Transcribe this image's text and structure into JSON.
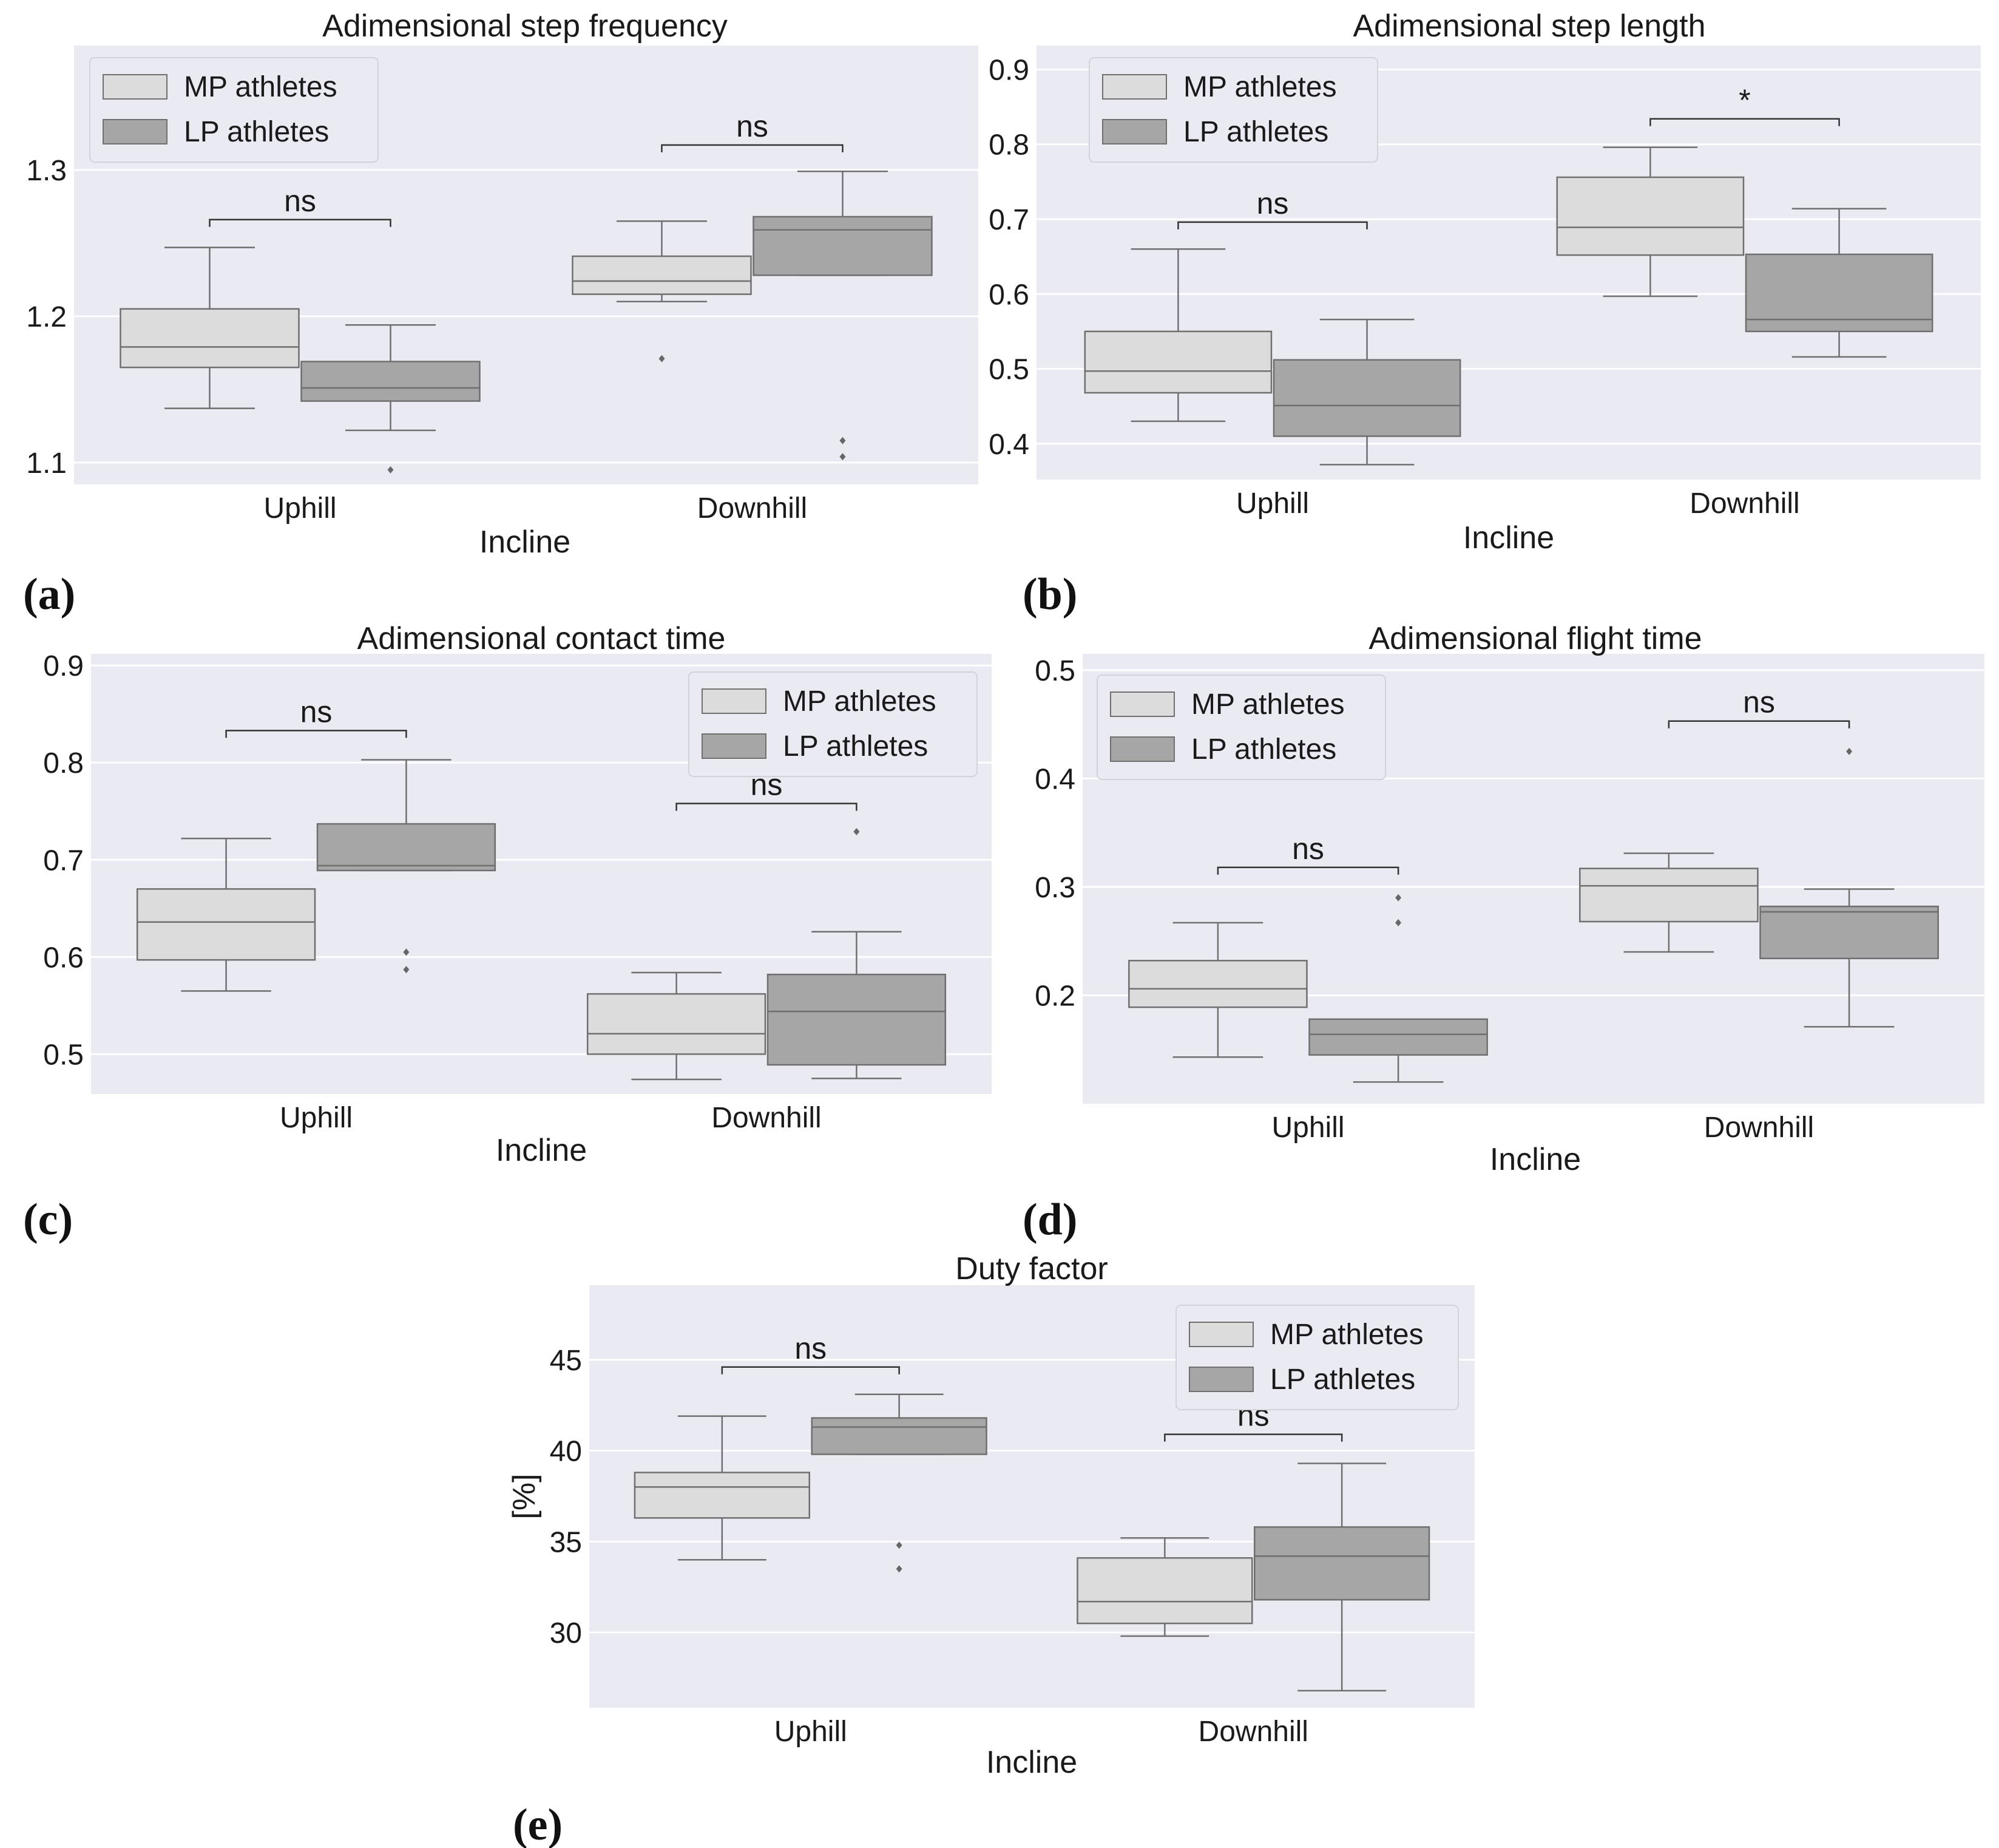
{
  "chart_data": [
    {
      "id": "a",
      "panel_label": "(a)",
      "type": "box",
      "title": "Adimensional step frequency",
      "xlabel": "Incline",
      "ylabel": "",
      "categories": [
        "Uphill",
        "Downhill"
      ],
      "ylim": [
        1.085,
        1.385
      ],
      "yticks": [
        1.1,
        1.2,
        1.3
      ],
      "ytick_labels": [
        "1.1",
        "1.2",
        "1.3"
      ],
      "legend": {
        "position": "top-left",
        "entries": [
          "MP athletes",
          "LP athletes"
        ]
      },
      "series": [
        {
          "name": "MP athletes",
          "color": "#dcdcdc",
          "boxes": [
            {
              "whislo": 1.137,
              "q1": 1.165,
              "med": 1.179,
              "q3": 1.205,
              "whishi": 1.247,
              "fliers": []
            },
            {
              "whislo": 1.21,
              "q1": 1.215,
              "med": 1.224,
              "q3": 1.241,
              "whishi": 1.265,
              "fliers": [
                1.171
              ]
            }
          ]
        },
        {
          "name": "LP athletes",
          "color": "#a6a6a6",
          "boxes": [
            {
              "whislo": 1.122,
              "q1": 1.142,
              "med": 1.151,
              "q3": 1.169,
              "whishi": 1.194,
              "fliers": [
                1.095
              ]
            },
            {
              "whislo": 1.228,
              "q1": 1.228,
              "med": 1.259,
              "q3": 1.268,
              "whishi": 1.299,
              "fliers": [
                1.104,
                1.115
              ]
            }
          ]
        }
      ],
      "annotations": [
        {
          "category": "Uphill",
          "text": "ns",
          "y": 1.266
        },
        {
          "category": "Downhill",
          "text": "ns",
          "y": 1.317
        }
      ]
    },
    {
      "id": "b",
      "panel_label": "(b)",
      "type": "box",
      "title": "Adimensional step length",
      "xlabel": "Incline",
      "ylabel": "",
      "categories": [
        "Uphill",
        "Downhill"
      ],
      "ylim": [
        0.352,
        0.932
      ],
      "yticks": [
        0.4,
        0.5,
        0.6,
        0.7,
        0.8,
        0.9
      ],
      "ytick_labels": [
        "0.4",
        "0.5",
        "0.6",
        "0.7",
        "0.8",
        "0.9"
      ],
      "legend": {
        "position": "top-left",
        "entries": [
          "MP athletes",
          "LP athletes"
        ]
      },
      "series": [
        {
          "name": "MP athletes",
          "color": "#dcdcdc",
          "boxes": [
            {
              "whislo": 0.43,
              "q1": 0.468,
              "med": 0.497,
              "q3": 0.55,
              "whishi": 0.66,
              "fliers": []
            },
            {
              "whislo": 0.597,
              "q1": 0.652,
              "med": 0.689,
              "q3": 0.756,
              "whishi": 0.796,
              "fliers": []
            }
          ]
        },
        {
          "name": "LP athletes",
          "color": "#a6a6a6",
          "boxes": [
            {
              "whislo": 0.372,
              "q1": 0.41,
              "med": 0.451,
              "q3": 0.512,
              "whishi": 0.566,
              "fliers": []
            },
            {
              "whislo": 0.516,
              "q1": 0.55,
              "med": 0.566,
              "q3": 0.653,
              "whishi": 0.714,
              "fliers": []
            }
          ]
        }
      ],
      "annotations": [
        {
          "category": "Uphill",
          "text": "ns",
          "y": 0.696
        },
        {
          "category": "Downhill",
          "text": "*",
          "y": 0.834
        }
      ]
    },
    {
      "id": "c",
      "panel_label": "(c)",
      "type": "box",
      "title": "Adimensional contact time",
      "xlabel": "Incline",
      "ylabel": "",
      "categories": [
        "Uphill",
        "Downhill"
      ],
      "ylim": [
        0.459,
        0.912
      ],
      "yticks": [
        0.5,
        0.6,
        0.7,
        0.8,
        0.9
      ],
      "ytick_labels": [
        "0.5",
        "0.6",
        "0.7",
        "0.8",
        "0.9"
      ],
      "legend": {
        "position": "top-right",
        "entries": [
          "MP athletes",
          "LP athletes"
        ]
      },
      "series": [
        {
          "name": "MP athletes",
          "color": "#dcdcdc",
          "boxes": [
            {
              "whislo": 0.565,
              "q1": 0.597,
              "med": 0.636,
              "q3": 0.67,
              "whishi": 0.722,
              "fliers": []
            },
            {
              "whislo": 0.474,
              "q1": 0.5,
              "med": 0.521,
              "q3": 0.562,
              "whishi": 0.584,
              "fliers": []
            }
          ]
        },
        {
          "name": "LP athletes",
          "color": "#a6a6a6",
          "boxes": [
            {
              "whislo": 0.689,
              "q1": 0.689,
              "med": 0.694,
              "q3": 0.737,
              "whishi": 0.803,
              "fliers": [
                0.587,
                0.605
              ]
            },
            {
              "whislo": 0.475,
              "q1": 0.489,
              "med": 0.544,
              "q3": 0.582,
              "whishi": 0.626,
              "fliers": [
                0.729
              ]
            }
          ]
        }
      ],
      "annotations": [
        {
          "category": "Uphill",
          "text": "ns",
          "y": 0.833
        },
        {
          "category": "Downhill",
          "text": "ns",
          "y": 0.758
        }
      ]
    },
    {
      "id": "d",
      "panel_label": "(d)",
      "type": "box",
      "title": "Adimensional flight time",
      "xlabel": "Incline",
      "ylabel": "",
      "categories": [
        "Uphill",
        "Downhill"
      ],
      "ylim": [
        0.1,
        0.515
      ],
      "yticks": [
        0.2,
        0.3,
        0.4,
        0.5
      ],
      "ytick_labels": [
        "0.2",
        "0.3",
        "0.4",
        "0.5"
      ],
      "legend": {
        "position": "top-left",
        "entries": [
          "MP athletes",
          "LP athletes"
        ]
      },
      "series": [
        {
          "name": "MP athletes",
          "color": "#dcdcdc",
          "boxes": [
            {
              "whislo": 0.143,
              "q1": 0.189,
              "med": 0.206,
              "q3": 0.232,
              "whishi": 0.267,
              "fliers": []
            },
            {
              "whislo": 0.24,
              "q1": 0.268,
              "med": 0.301,
              "q3": 0.317,
              "whishi": 0.331,
              "fliers": []
            }
          ]
        },
        {
          "name": "LP athletes",
          "color": "#a6a6a6",
          "boxes": [
            {
              "whislo": 0.12,
              "q1": 0.145,
              "med": 0.164,
              "q3": 0.178,
              "whishi": 0.178,
              "fliers": [
                0.267,
                0.29
              ]
            },
            {
              "whislo": 0.171,
              "q1": 0.234,
              "med": 0.277,
              "q3": 0.282,
              "whishi": 0.298,
              "fliers": [
                0.425
              ]
            }
          ]
        }
      ],
      "annotations": [
        {
          "category": "Uphill",
          "text": "ns",
          "y": 0.318
        },
        {
          "category": "Downhill",
          "text": "ns",
          "y": 0.453
        }
      ]
    },
    {
      "id": "e",
      "panel_label": "(e)",
      "type": "box",
      "title": "Duty factor",
      "xlabel": "Incline",
      "ylabel": "[%]",
      "categories": [
        "Uphill",
        "Downhill"
      ],
      "ylim": [
        25.86,
        49.1
      ],
      "yticks": [
        30,
        35,
        40,
        45
      ],
      "ytick_labels": [
        "30",
        "35",
        "40",
        "45"
      ],
      "legend": {
        "position": "top-right",
        "entries": [
          "MP athletes",
          "LP athletes"
        ]
      },
      "series": [
        {
          "name": "MP athletes",
          "color": "#dcdcdc",
          "boxes": [
            {
              "whislo": 34.0,
              "q1": 36.3,
              "med": 38.0,
              "q3": 38.8,
              "whishi": 41.9,
              "fliers": []
            },
            {
              "whislo": 29.8,
              "q1": 30.5,
              "med": 31.7,
              "q3": 34.1,
              "whishi": 35.2,
              "fliers": []
            }
          ]
        },
        {
          "name": "LP athletes",
          "color": "#a6a6a6",
          "boxes": [
            {
              "whislo": 39.8,
              "q1": 39.8,
              "med": 41.3,
              "q3": 41.8,
              "whishi": 43.1,
              "fliers": [
                33.5,
                34.8
              ]
            },
            {
              "whislo": 26.8,
              "q1": 31.8,
              "med": 34.2,
              "q3": 35.8,
              "whishi": 39.3,
              "fliers": []
            }
          ]
        }
      ],
      "annotations": [
        {
          "category": "Uphill",
          "text": "ns",
          "y": 44.6
        },
        {
          "category": "Downhill",
          "text": "ns",
          "y": 40.9
        }
      ]
    }
  ]
}
